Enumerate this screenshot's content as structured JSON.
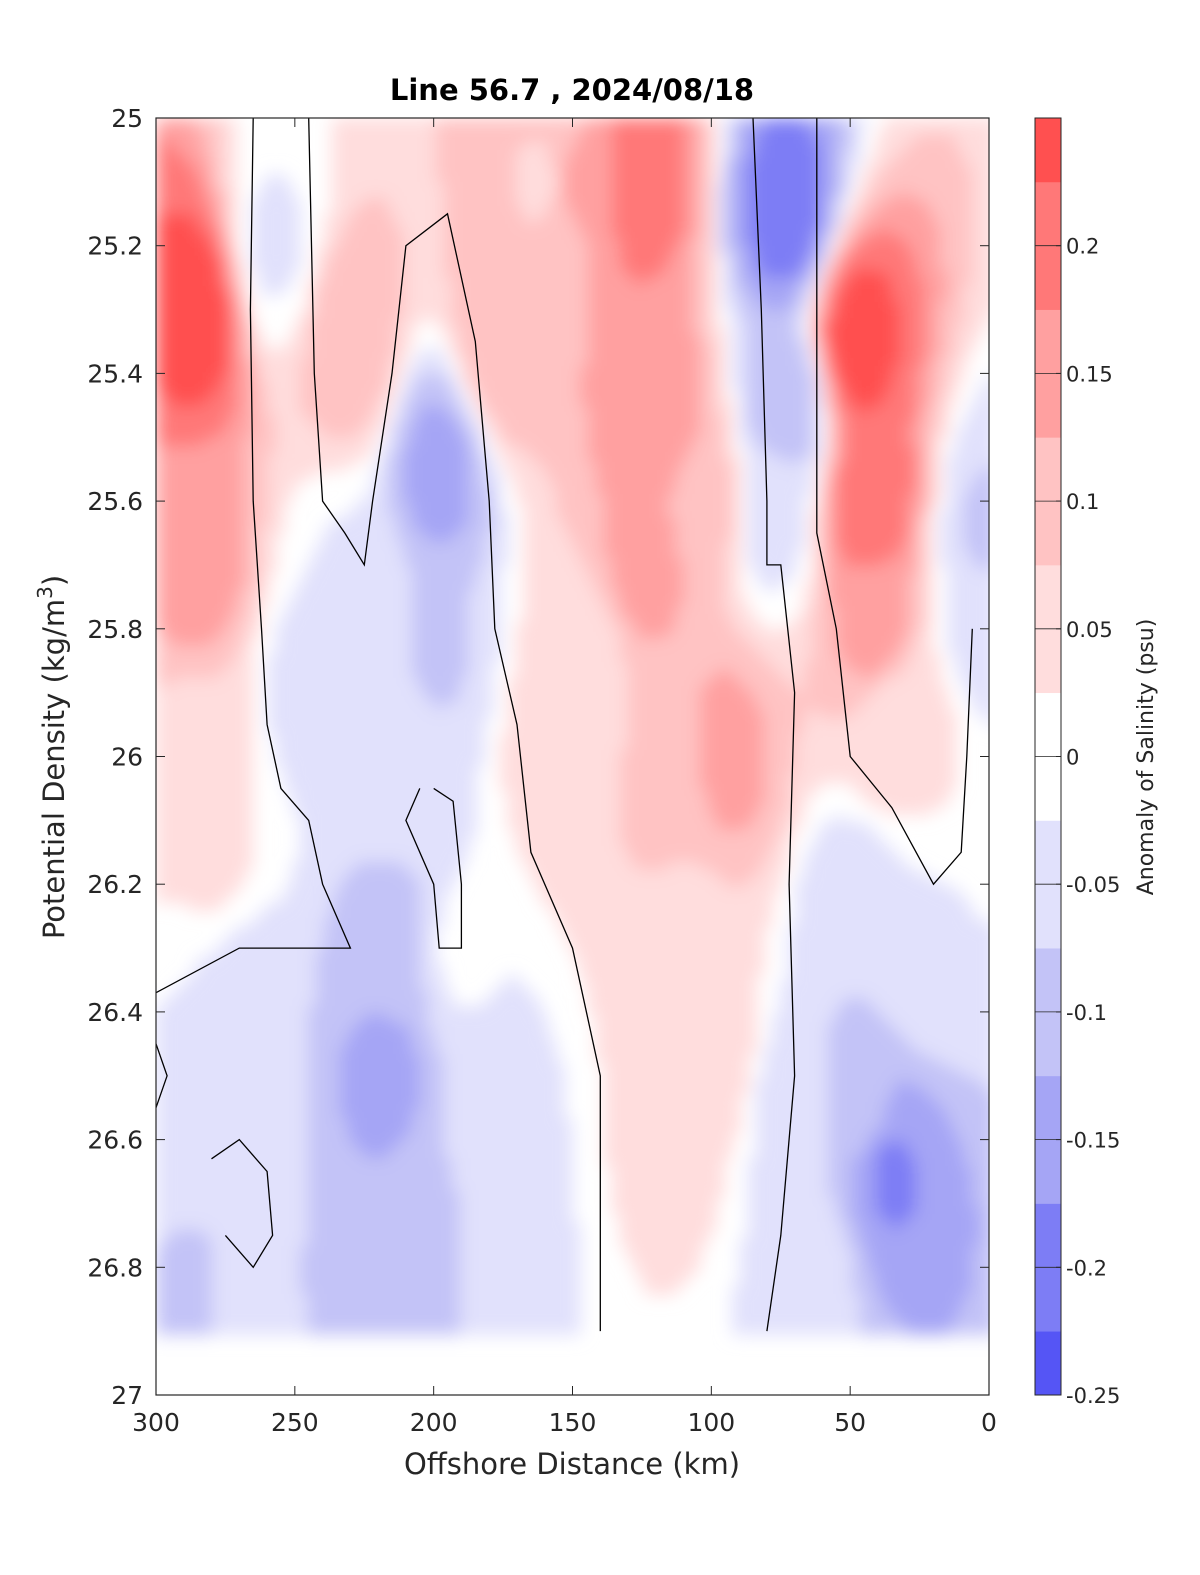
{
  "chart_data": {
    "type": "heatmap",
    "subtype": "filled-contour",
    "title": "Line 56.7 , 2024/08/18",
    "xlabel": "Offshore Distance (km)",
    "ylabel_main": "Potential Density (kg/m",
    "ylabel_sup": "3",
    "ylabel_tail": ")",
    "colorbar_label": "Anomaly of Salinity (psu)",
    "xlim": [
      300,
      0
    ],
    "x_reversed": true,
    "ylim": [
      25,
      27
    ],
    "y_reversed": true,
    "x_ticks": [
      300,
      250,
      200,
      150,
      100,
      50,
      0
    ],
    "y_ticks": [
      25,
      25.2,
      25.4,
      25.6,
      25.8,
      26,
      26.2,
      26.4,
      26.6,
      26.8,
      27
    ],
    "x_tick_labels": [
      "300",
      "250",
      "200",
      "150",
      "100",
      "50",
      "0"
    ],
    "y_tick_labels": [
      "25",
      "25.2",
      "25.4",
      "25.6",
      "25.8",
      "26",
      "26.2",
      "26.4",
      "26.6",
      "26.8",
      "27"
    ],
    "colorbar": {
      "range": [
        -0.25,
        0.25
      ],
      "levels": [
        -0.25,
        -0.2,
        -0.15,
        -0.1,
        -0.05,
        0,
        0.05,
        0.1,
        0.15,
        0.2,
        0.25
      ],
      "tick_values": [
        -0.25,
        -0.2,
        -0.15,
        -0.1,
        -0.05,
        0,
        0.05,
        0.1,
        0.15,
        0.2
      ],
      "tick_labels": [
        "-0.25",
        "-0.2",
        "-0.15",
        "-0.1",
        "-0.05",
        "0",
        "0.05",
        "0.1",
        "0.15",
        "0.2"
      ],
      "colormap": "blue-white-red"
    },
    "colors": {
      "negative_max": "#0000ff",
      "zero": "#ffffff",
      "positive_max": "#ff0000",
      "zero_contour": "#000000"
    },
    "data_extent_y": [
      25,
      26.9
    ],
    "zero_contour_drawn": true,
    "grid": false,
    "features": [
      {
        "x": 285,
        "y": 25.3,
        "value": 0.25
      },
      {
        "x": 285,
        "y": 25.7,
        "value": 0.15
      },
      {
        "x": 285,
        "y": 26.0,
        "value": 0.06
      },
      {
        "x": 278,
        "y": 26.15,
        "value": 0.03
      },
      {
        "x": 258,
        "y": 25.2,
        "value": -0.03
      },
      {
        "x": 230,
        "y": 25.35,
        "value": 0.11
      },
      {
        "x": 230,
        "y": 25.75,
        "value": -0.03
      },
      {
        "x": 198,
        "y": 25.55,
        "value": -0.14
      },
      {
        "x": 200,
        "y": 25.85,
        "value": -0.08
      },
      {
        "x": 210,
        "y": 26.0,
        "value": -0.03
      },
      {
        "x": 245,
        "y": 25.9,
        "value": -0.04
      },
      {
        "x": 175,
        "y": 25.35,
        "value": 0.12
      },
      {
        "x": 160,
        "y": 25.1,
        "value": 0.07
      },
      {
        "x": 150,
        "y": 25.1,
        "value": 0.13
      },
      {
        "x": 125,
        "y": 25.1,
        "value": 0.2
      },
      {
        "x": 120,
        "y": 25.45,
        "value": 0.17
      },
      {
        "x": 125,
        "y": 25.7,
        "value": 0.14
      },
      {
        "x": 105,
        "y": 25.6,
        "value": 0.12
      },
      {
        "x": 95,
        "y": 26.0,
        "value": 0.14
      },
      {
        "x": 155,
        "y": 26.0,
        "value": 0.06
      },
      {
        "x": 145,
        "y": 25.85,
        "value": 0.05
      },
      {
        "x": 115,
        "y": 26.05,
        "value": 0.09
      },
      {
        "x": 110,
        "y": 26.3,
        "value": 0.05
      },
      {
        "x": 100,
        "y": 26.45,
        "value": 0.06
      },
      {
        "x": 115,
        "y": 26.6,
        "value": 0.04
      },
      {
        "x": 73,
        "y": 25.15,
        "value": -0.2
      },
      {
        "x": 73,
        "y": 25.45,
        "value": -0.12
      },
      {
        "x": 78,
        "y": 25.62,
        "value": -0.04
      },
      {
        "x": 48,
        "y": 25.35,
        "value": 0.25
      },
      {
        "x": 43,
        "y": 25.6,
        "value": 0.22
      },
      {
        "x": 40,
        "y": 25.8,
        "value": 0.15
      },
      {
        "x": 35,
        "y": 25.95,
        "value": 0.05
      },
      {
        "x": 22,
        "y": 25.95,
        "value": 0.03
      },
      {
        "x": 3,
        "y": 25.8,
        "value": -0.05
      },
      {
        "x": 0,
        "y": 25.65,
        "value": -0.08
      },
      {
        "x": 268,
        "y": 26.4,
        "value": -0.07
      },
      {
        "x": 270,
        "y": 26.55,
        "value": -0.03
      },
      {
        "x": 285,
        "y": 26.85,
        "value": -0.08
      },
      {
        "x": 270,
        "y": 26.9,
        "value": -0.04
      },
      {
        "x": 218,
        "y": 26.5,
        "value": -0.14
      },
      {
        "x": 215,
        "y": 26.3,
        "value": -0.1
      },
      {
        "x": 205,
        "y": 26.75,
        "value": -0.1
      },
      {
        "x": 225,
        "y": 26.85,
        "value": -0.1
      },
      {
        "x": 180,
        "y": 26.6,
        "value": -0.06
      },
      {
        "x": 172,
        "y": 26.75,
        "value": -0.03
      },
      {
        "x": 190,
        "y": 26.3,
        "value": -0.02
      },
      {
        "x": 48,
        "y": 26.25,
        "value": -0.07
      },
      {
        "x": 45,
        "y": 26.55,
        "value": -0.11
      },
      {
        "x": 36,
        "y": 26.65,
        "value": -0.18
      },
      {
        "x": 70,
        "y": 26.55,
        "value": -0.05
      },
      {
        "x": 62,
        "y": 26.8,
        "value": -0.06
      },
      {
        "x": 25,
        "y": 26.3,
        "value": -0.03
      }
    ],
    "zero_contours": [
      [
        [
          265,
          25.0
        ],
        [
          266,
          25.3
        ],
        [
          265,
          25.6
        ],
        [
          262,
          25.8
        ],
        [
          260,
          25.95
        ],
        [
          255,
          26.05
        ],
        [
          245,
          26.1
        ],
        [
          240,
          26.2
        ],
        [
          230,
          26.3
        ],
        [
          270,
          26.3
        ],
        [
          300,
          26.37
        ]
      ],
      [
        [
          245,
          25.0
        ],
        [
          243,
          25.4
        ],
        [
          240,
          25.6
        ],
        [
          232,
          25.65
        ],
        [
          225,
          25.7
        ],
        [
          222,
          25.6
        ],
        [
          215,
          25.4
        ],
        [
          210,
          25.2
        ],
        [
          195,
          25.15
        ],
        [
          185,
          25.35
        ],
        [
          180,
          25.6
        ],
        [
          178,
          25.8
        ],
        [
          170,
          25.95
        ],
        [
          165,
          26.15
        ],
        [
          150,
          26.3
        ],
        [
          140,
          26.5
        ],
        [
          140,
          26.9
        ]
      ],
      [
        [
          200,
          26.05
        ],
        [
          193,
          26.07
        ],
        [
          190,
          26.2
        ],
        [
          190,
          26.3
        ],
        [
          198,
          26.3
        ],
        [
          200,
          26.2
        ],
        [
          210,
          26.1
        ],
        [
          205,
          26.05
        ]
      ],
      [
        [
          280,
          26.63
        ],
        [
          270,
          26.6
        ],
        [
          260,
          26.65
        ],
        [
          258,
          26.75
        ],
        [
          265,
          26.8
        ],
        [
          275,
          26.75
        ]
      ],
      [
        [
          85,
          25.0
        ],
        [
          82,
          25.3
        ],
        [
          80,
          25.6
        ],
        [
          80,
          25.7
        ],
        [
          75,
          25.7
        ],
        [
          70,
          25.9
        ],
        [
          72,
          26.2
        ],
        [
          70,
          26.5
        ],
        [
          75,
          26.75
        ],
        [
          80,
          26.9
        ]
      ],
      [
        [
          62,
          25.0
        ],
        [
          62,
          25.4
        ],
        [
          62,
          25.65
        ],
        [
          55,
          25.8
        ],
        [
          50,
          26.0
        ],
        [
          35,
          26.08
        ],
        [
          20,
          26.2
        ],
        [
          10,
          26.15
        ],
        [
          8,
          26.0
        ],
        [
          6,
          25.8
        ]
      ],
      [
        [
          300,
          26.45
        ],
        [
          296,
          26.5
        ],
        [
          300,
          26.55
        ]
      ]
    ]
  }
}
